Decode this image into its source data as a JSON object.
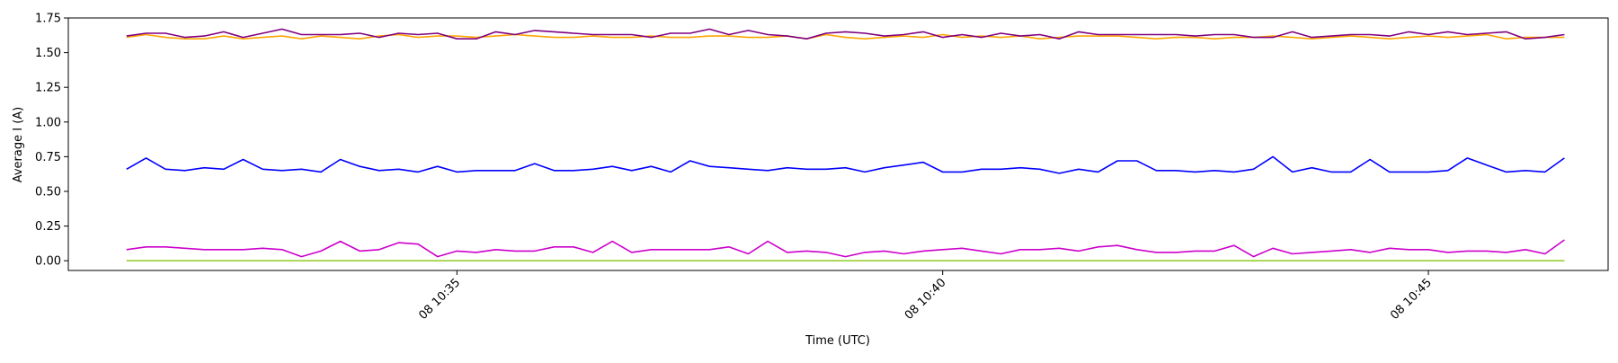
{
  "chart_data": {
    "type": "line",
    "title": "",
    "xlabel": "Time (UTC)",
    "ylabel": "Average I (A)",
    "ylim": [
      -0.07,
      1.75
    ],
    "yticks": [
      0.0,
      0.25,
      0.5,
      0.75,
      1.0,
      1.25,
      1.5,
      1.75
    ],
    "ytick_labels": [
      "0.00",
      "0.25",
      "0.50",
      "0.75",
      "1.00",
      "1.25",
      "1.50",
      "1.75"
    ],
    "xlim": [
      "08 10:31:00",
      "08 10:46:51"
    ],
    "xticks": [
      "08 10:35",
      "08 10:40",
      "08 10:45"
    ],
    "grid": false,
    "x": [
      "10:31:36",
      "10:31:48",
      "10:32:00",
      "10:32:12",
      "10:32:24",
      "10:32:36",
      "10:32:48",
      "10:33:00",
      "10:33:12",
      "10:33:24",
      "10:33:36",
      "10:33:48",
      "10:34:00",
      "10:34:12",
      "10:34:24",
      "10:34:36",
      "10:34:48",
      "10:35:00",
      "10:35:12",
      "10:35:24",
      "10:35:36",
      "10:35:48",
      "10:36:00",
      "10:36:12",
      "10:36:24",
      "10:36:36",
      "10:36:48",
      "10:37:00",
      "10:37:12",
      "10:37:24",
      "10:37:36",
      "10:37:48",
      "10:38:00",
      "10:38:12",
      "10:38:24",
      "10:38:36",
      "10:38:48",
      "10:39:00",
      "10:39:12",
      "10:39:24",
      "10:39:36",
      "10:39:48",
      "10:40:00",
      "10:40:12",
      "10:40:24",
      "10:40:36",
      "10:40:48",
      "10:41:00",
      "10:41:12",
      "10:41:24",
      "10:41:36",
      "10:41:48",
      "10:42:00",
      "10:42:12",
      "10:42:24",
      "10:42:36",
      "10:42:48",
      "10:43:00",
      "10:43:12",
      "10:43:24",
      "10:43:36",
      "10:43:48",
      "10:44:00",
      "10:44:12",
      "10:44:24",
      "10:44:36",
      "10:44:48",
      "10:45:00",
      "10:45:12",
      "10:45:24",
      "10:45:36",
      "10:45:48",
      "10:46:00",
      "10:46:12",
      "10:46:24"
    ],
    "series": [
      {
        "color": "#ffa500",
        "values": [
          1.61,
          1.63,
          1.61,
          1.6,
          1.6,
          1.62,
          1.6,
          1.61,
          1.62,
          1.6,
          1.62,
          1.61,
          1.6,
          1.62,
          1.63,
          1.61,
          1.62,
          1.62,
          1.61,
          1.62,
          1.63,
          1.62,
          1.61,
          1.61,
          1.62,
          1.61,
          1.61,
          1.62,
          1.61,
          1.61,
          1.62,
          1.62,
          1.61,
          1.61,
          1.62,
          1.6,
          1.63,
          1.61,
          1.6,
          1.61,
          1.62,
          1.61,
          1.63,
          1.61,
          1.62,
          1.61,
          1.62,
          1.6,
          1.61,
          1.62,
          1.62,
          1.62,
          1.61,
          1.6,
          1.61,
          1.61,
          1.6,
          1.61,
          1.61,
          1.62,
          1.61,
          1.6,
          1.61,
          1.62,
          1.61,
          1.6,
          1.61,
          1.62,
          1.61,
          1.62,
          1.63,
          1.6,
          1.61,
          1.61,
          1.61
        ]
      },
      {
        "color": "#800080",
        "values": [
          1.62,
          1.64,
          1.64,
          1.61,
          1.62,
          1.65,
          1.61,
          1.64,
          1.67,
          1.63,
          1.63,
          1.63,
          1.64,
          1.61,
          1.64,
          1.63,
          1.64,
          1.6,
          1.6,
          1.65,
          1.63,
          1.66,
          1.65,
          1.64,
          1.63,
          1.63,
          1.63,
          1.61,
          1.64,
          1.64,
          1.67,
          1.63,
          1.66,
          1.63,
          1.62,
          1.6,
          1.64,
          1.65,
          1.64,
          1.62,
          1.63,
          1.65,
          1.61,
          1.63,
          1.61,
          1.64,
          1.62,
          1.63,
          1.6,
          1.65,
          1.63,
          1.63,
          1.63,
          1.63,
          1.63,
          1.62,
          1.63,
          1.63,
          1.61,
          1.61,
          1.65,
          1.61,
          1.62,
          1.63,
          1.63,
          1.62,
          1.65,
          1.63,
          1.65,
          1.63,
          1.64,
          1.65,
          1.6,
          1.61,
          1.63
        ]
      },
      {
        "color": "#0000ff",
        "values": [
          0.66,
          0.74,
          0.66,
          0.65,
          0.67,
          0.66,
          0.73,
          0.66,
          0.65,
          0.66,
          0.64,
          0.73,
          0.68,
          0.65,
          0.66,
          0.64,
          0.68,
          0.64,
          0.65,
          0.65,
          0.65,
          0.7,
          0.65,
          0.65,
          0.66,
          0.68,
          0.65,
          0.68,
          0.64,
          0.72,
          0.68,
          0.67,
          0.66,
          0.65,
          0.67,
          0.66,
          0.66,
          0.67,
          0.64,
          0.67,
          0.69,
          0.71,
          0.64,
          0.64,
          0.66,
          0.66,
          0.67,
          0.66,
          0.63,
          0.66,
          0.64,
          0.72,
          0.72,
          0.65,
          0.65,
          0.64,
          0.65,
          0.64,
          0.66,
          0.75,
          0.64,
          0.67,
          0.64,
          0.64,
          0.73,
          0.64,
          0.64,
          0.64,
          0.65,
          0.74,
          0.69,
          0.64,
          0.65,
          0.64,
          0.74
        ]
      },
      {
        "color": "#cc00cc",
        "values": [
          0.08,
          0.1,
          0.1,
          0.09,
          0.08,
          0.08,
          0.08,
          0.09,
          0.08,
          0.03,
          0.07,
          0.14,
          0.07,
          0.08,
          0.13,
          0.12,
          0.03,
          0.07,
          0.06,
          0.08,
          0.07,
          0.07,
          0.1,
          0.1,
          0.06,
          0.14,
          0.06,
          0.08,
          0.08,
          0.08,
          0.08,
          0.1,
          0.05,
          0.14,
          0.06,
          0.07,
          0.06,
          0.03,
          0.06,
          0.07,
          0.05,
          0.07,
          0.08,
          0.09,
          0.07,
          0.05,
          0.08,
          0.08,
          0.09,
          0.07,
          0.1,
          0.11,
          0.08,
          0.06,
          0.06,
          0.07,
          0.07,
          0.11,
          0.03,
          0.09,
          0.05,
          0.06,
          0.07,
          0.08,
          0.06,
          0.09,
          0.08,
          0.08,
          0.06,
          0.07,
          0.07,
          0.06,
          0.08,
          0.05,
          0.15
        ]
      },
      {
        "color": "#9acd32",
        "values": [
          0.0,
          0.0,
          0.0,
          0.0,
          0.0,
          0.0,
          0.0,
          0.0,
          0.0,
          0.0,
          0.0,
          0.0,
          0.0,
          0.0,
          0.0,
          0.0,
          0.0,
          0.0,
          0.0,
          0.0,
          0.0,
          0.0,
          0.0,
          0.0,
          0.0,
          0.0,
          0.0,
          0.0,
          0.0,
          0.0,
          0.0,
          0.0,
          0.0,
          0.0,
          0.0,
          0.0,
          0.0,
          0.0,
          0.0,
          0.0,
          0.0,
          0.0,
          0.0,
          0.0,
          0.0,
          0.0,
          0.0,
          0.0,
          0.0,
          0.0,
          0.0,
          0.0,
          0.0,
          0.0,
          0.0,
          0.0,
          0.0,
          0.0,
          0.0,
          0.0,
          0.0,
          0.0,
          0.0,
          0.0,
          0.0,
          0.0,
          0.0,
          0.0,
          0.0,
          0.0,
          0.0,
          0.0,
          0.0,
          0.0,
          0.0
        ]
      }
    ]
  }
}
